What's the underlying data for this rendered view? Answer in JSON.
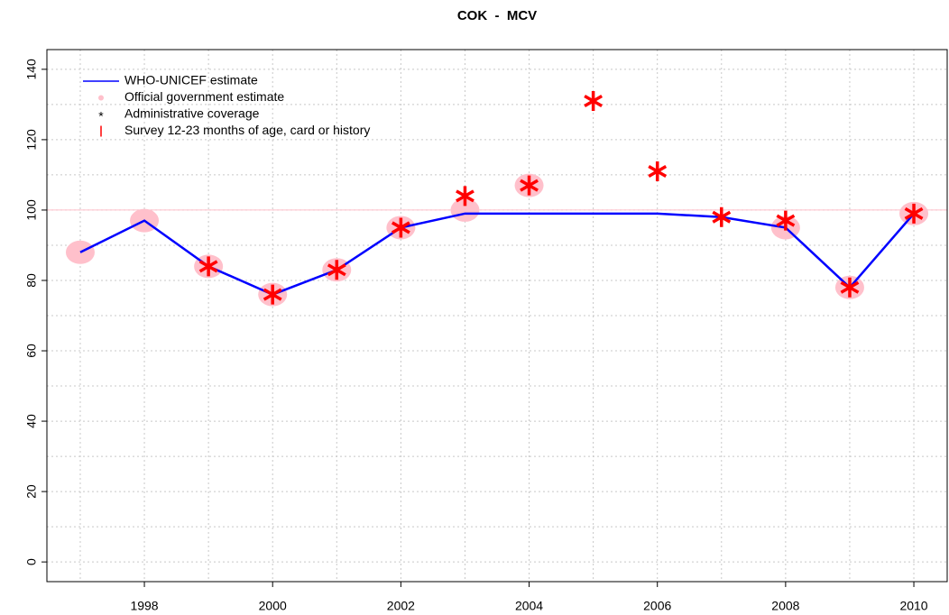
{
  "chart_data": {
    "type": "line",
    "title": "COK  -  MCV",
    "x": [
      1997,
      1998,
      1999,
      2000,
      2001,
      2002,
      2003,
      2004,
      2005,
      2006,
      2007,
      2008,
      2009,
      2010
    ],
    "series": [
      {
        "name": "WHO-UNICEF estimate",
        "color": "#0000ff",
        "style": "line",
        "values": [
          88,
          97,
          84,
          76,
          83,
          95,
          99,
          99,
          99,
          99,
          98,
          95,
          78,
          99
        ]
      },
      {
        "name": "Official government estimate",
        "color": "#ffc0cb",
        "style": "circle",
        "values": [
          88,
          97,
          84,
          76,
          83,
          95,
          100,
          107,
          null,
          null,
          null,
          95,
          78,
          99
        ]
      },
      {
        "name": "Administrative coverage",
        "color": "#ff0000",
        "style": "star",
        "values": [
          null,
          null,
          84,
          76,
          83,
          95,
          104,
          107,
          131,
          111,
          98,
          97,
          78,
          99
        ]
      },
      {
        "name": "Survey 12-23 months of age, card or history",
        "color": "#ff0000",
        "style": "bar",
        "values": [
          null,
          null,
          null,
          null,
          null,
          null,
          null,
          null,
          null,
          null,
          null,
          null,
          null,
          null
        ]
      }
    ],
    "xlim": [
      1996.48,
      2010.52
    ],
    "ylim": [
      -5.6,
      145.6
    ],
    "xticks": [
      1998,
      2000,
      2002,
      2004,
      2006,
      2008,
      2010
    ],
    "yticks": [
      0,
      20,
      40,
      60,
      80,
      100,
      120,
      140
    ],
    "xgrid": [
      1997,
      1998,
      1999,
      2000,
      2001,
      2002,
      2003,
      2004,
      2005,
      2006,
      2007,
      2008,
      2009,
      2010
    ],
    "ygrid": [
      0,
      10,
      20,
      30,
      40,
      50,
      60,
      70,
      80,
      90,
      100,
      110,
      120,
      130,
      140
    ],
    "hline": 100,
    "hline_color": "#ffc0cb",
    "legend": "top-left"
  }
}
